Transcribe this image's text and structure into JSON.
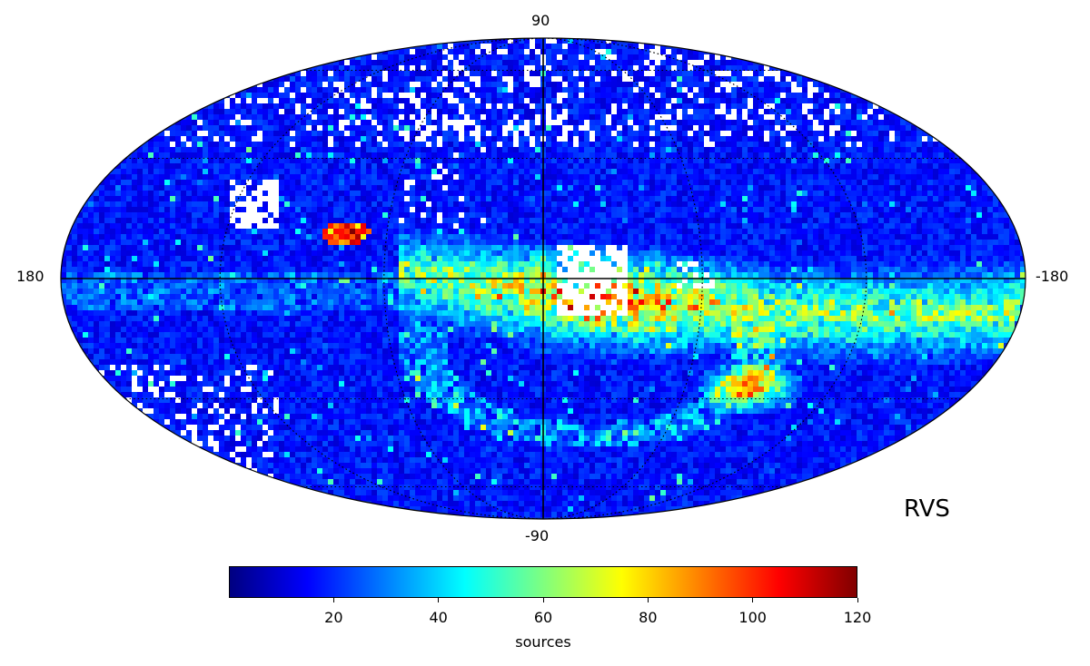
{
  "map": {
    "projection": "Mollweide all-sky",
    "panel_label": "RVS",
    "labels": {
      "top": "90",
      "bottom": "-90",
      "left": "180",
      "right": "-180"
    },
    "gridlines": "dotted graticule with solid equator and central meridian",
    "features": [
      "dense band along the galactic plane (lower-right half)",
      "white holes of no data near the centre",
      "high-density blob at lower right",
      "small red patch upper-left of centre",
      "white patch in upper-left region"
    ]
  },
  "colorbar": {
    "colormap": "jet",
    "min": 0,
    "max": 120,
    "ticks": [
      "20",
      "40",
      "60",
      "80",
      "100",
      "120"
    ],
    "label": "sources",
    "colors": [
      "#00007f",
      "#0000ff",
      "#007fff",
      "#00ffff",
      "#7fff7f",
      "#ffff00",
      "#ff7f00",
      "#ff0000",
      "#7f0000"
    ]
  }
}
